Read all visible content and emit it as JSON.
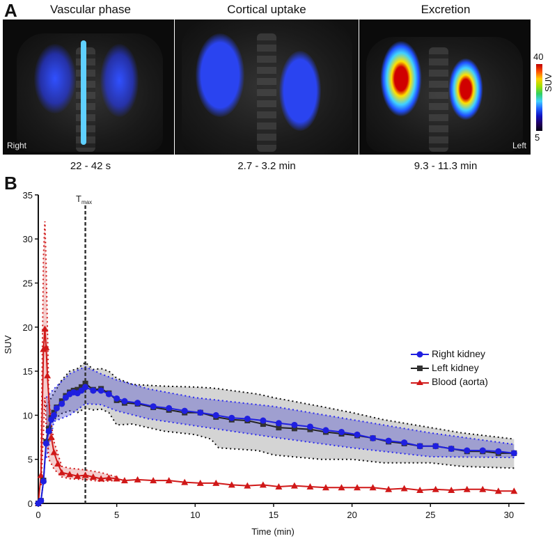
{
  "panel_a": {
    "label": "A",
    "titles": [
      "Vascular phase",
      "Cortical uptake",
      "Excretion"
    ],
    "captions": [
      "22 - 42 s",
      "2.7 - 3.2 min",
      "9.3 - 11.3 min"
    ],
    "orientation_left": "Right",
    "orientation_right": "Left",
    "colorbar": {
      "label": "SUV",
      "max": "40",
      "min": "5"
    }
  },
  "panel_b": {
    "label": "B"
  },
  "chart_data": {
    "type": "line",
    "xlabel": "Time (min)",
    "ylabel": "SUV",
    "xlim": [
      0,
      31
    ],
    "ylim": [
      0,
      35
    ],
    "xticks": [
      "0",
      "5",
      "10",
      "15",
      "20",
      "25",
      "30"
    ],
    "yticks": [
      "0",
      "5",
      "10",
      "15",
      "20",
      "25",
      "30",
      "35"
    ],
    "grid": false,
    "legend_position": "right",
    "annotation": {
      "text": "T",
      "subscript": "max",
      "x": 3
    },
    "series": [
      {
        "name": "Right kidney",
        "color": "#1f1fe0",
        "marker": "circle",
        "x": [
          0,
          0.17,
          0.33,
          0.5,
          0.67,
          0.83,
          1,
          1.17,
          1.5,
          1.75,
          2,
          2.25,
          2.5,
          2.75,
          3,
          3.5,
          4,
          4.5,
          5,
          5.5,
          6.33,
          7.33,
          8.33,
          9.33,
          10.33,
          11.33,
          12.33,
          13.33,
          14.33,
          15.33,
          16.33,
          17.33,
          18.33,
          19.33,
          20.33,
          21.33,
          22.33,
          23.33,
          24.33,
          25.33,
          26.33,
          27.33,
          28.33,
          29.33,
          30.33
        ],
        "y": [
          0,
          0.3,
          2.5,
          6.8,
          8.2,
          9.5,
          10,
          10.8,
          11.3,
          12,
          12.4,
          12.6,
          12.5,
          12.8,
          13.2,
          12.8,
          12.8,
          12.4,
          11.9,
          11.6,
          11.4,
          11,
          10.8,
          10.5,
          10.3,
          10,
          9.7,
          9.6,
          9.4,
          9.1,
          8.9,
          8.7,
          8.3,
          8.1,
          7.8,
          7.4,
          7.1,
          6.9,
          6.5,
          6.5,
          6.2,
          6.0,
          6.0,
          5.9,
          5.7
        ],
        "band": {
          "x": [
            0.5,
            1,
            2,
            3,
            4,
            5,
            7,
            10,
            15,
            20,
            25,
            30.33
          ],
          "upper": [
            12,
            13,
            14.7,
            15.5,
            14.7,
            14,
            13,
            12,
            11,
            9.5,
            8,
            6.7
          ],
          "lower": [
            5,
            9.3,
            10,
            11.3,
            11.2,
            10.5,
            9.6,
            8.8,
            7.5,
            6.3,
            5.3,
            5.2
          ]
        }
      },
      {
        "name": "Left kidney",
        "color": "#222222",
        "marker": "square",
        "x": [
          0,
          0.17,
          0.33,
          0.5,
          0.67,
          0.83,
          1,
          1.17,
          1.5,
          1.75,
          2,
          2.25,
          2.5,
          2.75,
          3,
          3.5,
          4,
          4.5,
          5,
          5.5,
          6.33,
          7.33,
          8.33,
          9.33,
          10.33,
          11.33,
          12.33,
          13.33,
          14.33,
          15.33,
          16.33,
          17.33,
          18.33,
          19.33,
          20.33,
          21.33,
          22.33,
          23.33,
          24.33,
          25.33,
          26.33,
          27.33,
          28.33,
          29.33,
          30.33
        ],
        "y": [
          0,
          0.3,
          2.6,
          7,
          8.5,
          9.7,
          10.3,
          10.9,
          11.6,
          12.2,
          12.6,
          12.8,
          12.9,
          13.2,
          13.6,
          12.9,
          13,
          12.5,
          11.7,
          11.4,
          11.3,
          10.9,
          10.6,
          10.3,
          10.3,
          9.8,
          9.5,
          9.4,
          9,
          8.6,
          8.5,
          8.4,
          8.1,
          7.9,
          7.7,
          7.4,
          7.0,
          6.8,
          6.5,
          6.5,
          6.2,
          5.9,
          5.9,
          5.7,
          5.7
        ],
        "band": {
          "x": [
            0.5,
            1,
            1.5,
            2,
            2.5,
            3,
            3.5,
            4,
            4.5,
            5,
            6,
            8,
            10,
            11,
            11.5,
            14,
            15,
            18,
            20,
            22,
            25,
            27,
            30.33
          ],
          "upper": [
            11,
            12.5,
            14,
            15,
            15.3,
            16,
            15.2,
            15.3,
            15,
            14.2,
            13.5,
            13.3,
            13.2,
            13.1,
            13,
            12.4,
            12,
            11,
            10.3,
            9.5,
            8.6,
            8,
            7.3
          ],
          "lower": [
            8,
            9.5,
            10.2,
            10.5,
            10.3,
            10.8,
            10.6,
            10.7,
            10.3,
            8.9,
            9,
            8.2,
            7.8,
            7.3,
            6.3,
            6,
            5.5,
            5,
            5,
            4.6,
            4.6,
            4.2,
            4
          ]
        }
      },
      {
        "name": "Blood (aorta)",
        "color": "#d01818",
        "marker": "triangle",
        "x": [
          0,
          0.17,
          0.33,
          0.42,
          0.5,
          0.58,
          0.83,
          1,
          1.25,
          1.5,
          2,
          2.5,
          3,
          3.5,
          4,
          4.5,
          5,
          5.5,
          6.33,
          7.33,
          8.33,
          9.33,
          10.33,
          11.33,
          12.33,
          13.33,
          14.33,
          15.33,
          16.33,
          17.33,
          18.33,
          19.33,
          20.33,
          21.33,
          22.33,
          23.33,
          24.33,
          25.33,
          26.33,
          27.33,
          28.33,
          29.33,
          30.33
        ],
        "y": [
          0,
          3.2,
          17.5,
          19.8,
          17.7,
          14.5,
          7.5,
          5.8,
          4.5,
          3.5,
          3.3,
          3.1,
          3.2,
          3.0,
          2.8,
          2.9,
          2.8,
          2.6,
          2.7,
          2.6,
          2.6,
          2.4,
          2.3,
          2.3,
          2.1,
          2.0,
          2.1,
          1.9,
          2.0,
          1.9,
          1.8,
          1.8,
          1.8,
          1.8,
          1.6,
          1.7,
          1.5,
          1.6,
          1.5,
          1.6,
          1.6,
          1.4,
          1.4
        ],
        "band": {
          "x": [
            0.17,
            0.33,
            0.42,
            0.5,
            0.67,
            0.83,
            1,
            1.5,
            2,
            3,
            4,
            5
          ],
          "upper": [
            4,
            28,
            32,
            27,
            12,
            9,
            7,
            4.2,
            4,
            3.8,
            3.5,
            3
          ],
          "lower": [
            2,
            8,
            12,
            9,
            5,
            4.5,
            3.9,
            3,
            2.8,
            2.7,
            2.5,
            2.6
          ]
        }
      }
    ]
  }
}
